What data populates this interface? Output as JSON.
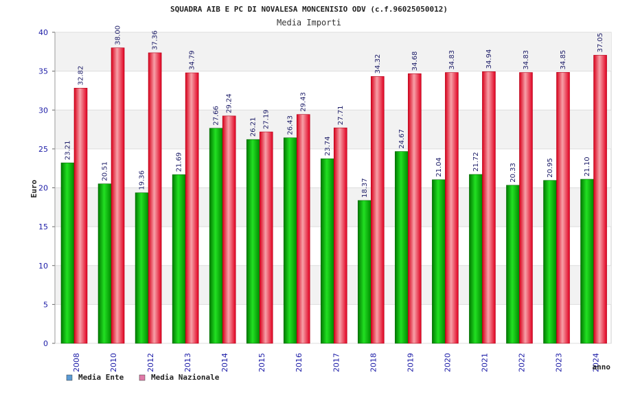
{
  "chart_data": {
    "type": "bar",
    "title": "SQUADRA AIB E PC DI NOVALESA MONCENISIO ODV (c.f.96025050012)",
    "subtitle": "Media Importi",
    "xlabel": "anno",
    "ylabel": "Euro",
    "ylim": [
      0,
      40
    ],
    "yticks": [
      0,
      5,
      10,
      15,
      20,
      25,
      30,
      35,
      40
    ],
    "grid": true,
    "legend_position": "bottom-left",
    "categories": [
      "2008",
      "2010",
      "2012",
      "2013",
      "2014",
      "2015",
      "2016",
      "2017",
      "2018",
      "2019",
      "2020",
      "2021",
      "2022",
      "2023",
      "2024"
    ],
    "series": [
      {
        "name": "Media Ente",
        "color": "#00b000",
        "legend_color": "#5b9bd5",
        "values": [
          23.21,
          20.51,
          19.36,
          21.69,
          27.66,
          26.21,
          26.43,
          23.74,
          18.37,
          24.67,
          21.04,
          21.72,
          20.33,
          20.95,
          21.1
        ],
        "labels": [
          "23.21",
          "20.51",
          "19.36",
          "21.69",
          "27.66",
          "26.21",
          "26.43",
          "23.74",
          "18.37",
          "24.67",
          "21.04",
          "21.72",
          "20.33",
          "20.95",
          "21.10"
        ]
      },
      {
        "name": "Media Nazionale",
        "color": "#e8001c",
        "legend_color": "#e07aa8",
        "values": [
          32.82,
          38.0,
          37.36,
          34.79,
          29.24,
          27.19,
          29.43,
          27.71,
          34.32,
          34.68,
          34.83,
          34.94,
          34.83,
          34.85,
          37.05
        ],
        "labels": [
          "32.82",
          "38.00",
          "37.36",
          "34.79",
          "29.24",
          "27.19",
          "29.43",
          "27.71",
          "34.32",
          "34.68",
          "34.83",
          "34.94",
          "34.83",
          "34.85",
          "37.05"
        ]
      }
    ]
  }
}
